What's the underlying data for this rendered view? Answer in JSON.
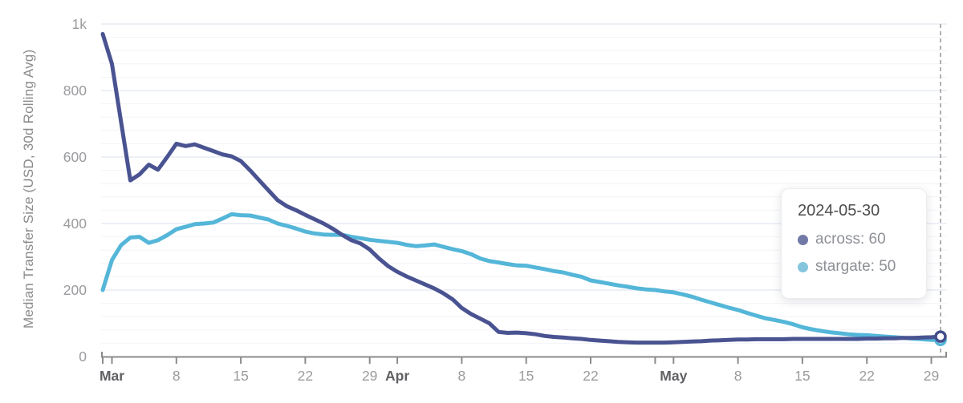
{
  "chart_data": {
    "type": "line",
    "title": "",
    "xlabel": "",
    "ylabel": "Median Transfer Size (USD, 30d Rolling Avg)",
    "ylim": [
      0,
      1000
    ],
    "y_ticks": [
      {
        "v": 0,
        "label": "0"
      },
      {
        "v": 200,
        "label": "200"
      },
      {
        "v": 400,
        "label": "400"
      },
      {
        "v": 600,
        "label": "600"
      },
      {
        "v": 800,
        "label": "800"
      },
      {
        "v": 1000,
        "label": "1k"
      }
    ],
    "y_minor_step": 40,
    "x_ticks": [
      {
        "day": 0,
        "label": "",
        "bold": false
      },
      {
        "day": 1,
        "label": "Mar",
        "bold": true
      },
      {
        "day": 8,
        "label": "8",
        "bold": false
      },
      {
        "day": 15,
        "label": "15",
        "bold": false
      },
      {
        "day": 22,
        "label": "22",
        "bold": false
      },
      {
        "day": 29,
        "label": "29",
        "bold": false
      },
      {
        "day": 32,
        "label": "Apr",
        "bold": true
      },
      {
        "day": 39,
        "label": "8",
        "bold": false
      },
      {
        "day": 46,
        "label": "15",
        "bold": false
      },
      {
        "day": 53,
        "label": "22",
        "bold": false
      },
      {
        "day": 60,
        "label": "",
        "bold": false
      },
      {
        "day": 62,
        "label": "May",
        "bold": true
      },
      {
        "day": 69,
        "label": "8",
        "bold": false
      },
      {
        "day": 76,
        "label": "15",
        "bold": false
      },
      {
        "day": 83,
        "label": "22",
        "bold": false
      },
      {
        "day": 90,
        "label": "29",
        "bold": false
      }
    ],
    "series": [
      {
        "name": "stargate",
        "color": "#54b6d8",
        "dot_color": "#85c6de",
        "end_value": 50,
        "values": [
          200,
          290,
          335,
          358,
          360,
          342,
          350,
          365,
          383,
          390,
          398,
          400,
          403,
          415,
          428,
          425,
          424,
          418,
          412,
          400,
          393,
          385,
          376,
          370,
          367,
          366,
          366,
          360,
          356,
          351,
          348,
          345,
          342,
          336,
          332,
          334,
          337,
          330,
          323,
          317,
          308,
          295,
          287,
          283,
          278,
          274,
          273,
          268,
          263,
          257,
          253,
          246,
          240,
          229,
          224,
          219,
          214,
          210,
          205,
          202,
          200,
          196,
          193,
          187,
          180,
          171,
          163,
          155,
          147,
          140,
          131,
          123,
          115,
          110,
          104,
          97,
          88,
          82,
          77,
          73,
          70,
          67,
          65,
          64,
          62,
          60,
          58,
          56,
          54,
          52,
          50,
          50
        ]
      },
      {
        "name": "across",
        "color": "#4a5391",
        "dot_color": "#717aa6",
        "end_value": 60,
        "values": [
          970,
          880,
          705,
          530,
          548,
          577,
          562,
          600,
          640,
          633,
          638,
          628,
          618,
          608,
          602,
          588,
          560,
          530,
          500,
          470,
          452,
          440,
          426,
          413,
          400,
          384,
          366,
          350,
          340,
          322,
          295,
          272,
          255,
          241,
          229,
          217,
          205,
          190,
          172,
          146,
          128,
          114,
          100,
          74,
          71,
          72,
          70,
          67,
          62,
          59,
          57,
          55,
          53,
          50,
          48,
          46,
          44,
          43,
          42,
          42,
          42,
          42,
          43,
          44,
          45,
          46,
          48,
          49,
          50,
          51,
          51,
          52,
          52,
          52,
          52,
          53,
          53,
          53,
          53,
          53,
          53,
          53,
          53,
          54,
          54,
          55,
          55,
          56,
          56,
          57,
          58,
          60
        ]
      }
    ],
    "cursor": {
      "day": 91
    },
    "tooltip": {
      "title": "2024-05-30",
      "rows": [
        {
          "series": "across",
          "label": "across: 60"
        },
        {
          "series": "stargate",
          "label": "stargate: 50"
        }
      ]
    },
    "grid": {
      "minor_color": "#f3f4f8",
      "major_color": "#e2e6f1"
    },
    "axis_color": "#8b8b8b",
    "cursor_color": "#a8a8a8"
  }
}
